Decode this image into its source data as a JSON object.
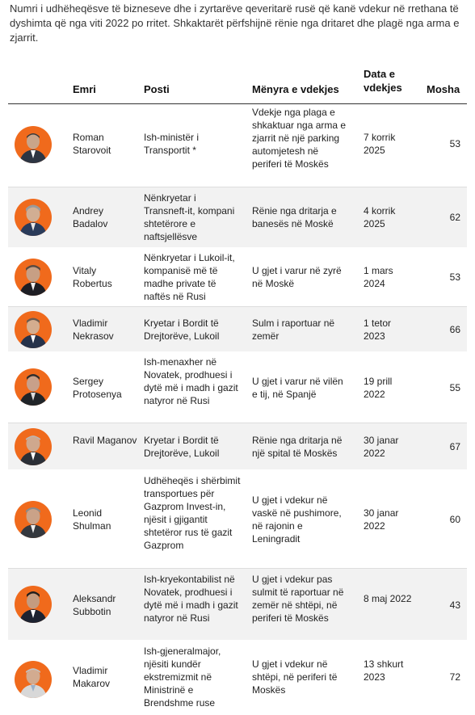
{
  "intro": "Numri i udhëheqësve të bizneseve dhe i zyrtarëve qeveritarë rusë që kanë vdekur në rrethana të dyshimta që nga viti 2022 po rritet. Shkaktarët përfshijnë rënie nga dritaret dhe plagë nga arma e zjarrit.",
  "columns": {
    "name": "Emri",
    "post": "Posti",
    "method": "Mënyra e vdekjes",
    "date": "Data e vdekjes",
    "age": "Mosha"
  },
  "colors": {
    "avatar_bg": "#f06a1c",
    "row_shade": "#f2f2f2",
    "divider": "#dddddd"
  },
  "rows": [
    {
      "name": "Roman Starovoit",
      "post": "Ish-ministër i Transportit *",
      "method": "Vdekje nga plaga e shkaktuar nga arma e zjarrit në një parking automjetesh në periferi të Moskës",
      "date": "7 korrik 2025",
      "age": "53"
    },
    {
      "name": "Andrey Badalov",
      "post": "Nënkryetar i Transneft-it, kompani shtetërore e naftsjellësve",
      "method": "Rënie nga dritarja e banesës në Moskë",
      "date": "4 korrik 2025",
      "age": "62"
    },
    {
      "name": "Vitaly Robertus",
      "post": "Nënkryetar i Lukoil-it, kompanisë më të madhe private të naftës në Rusi",
      "method": "U gjet i varur në zyrë në Moskë",
      "date": "1 mars 2024",
      "age": "53"
    },
    {
      "name": "Vladimir Nekrasov",
      "post": "Kryetar i Bordit të Drejtorëve, Lukoil",
      "method": "Sulm i raportuar në zemër",
      "date": "1 tetor 2023",
      "age": "66"
    },
    {
      "name": "Sergey Protosenya",
      "post": "Ish-menaxher në Novatek, prodhuesi i dytë më i madh i gazit natyror në Rusi",
      "method": "U gjet i varur në vilën e tij, në Spanjë",
      "date": "19 prill 2022",
      "age": "55"
    },
    {
      "name": "Ravil Maganov",
      "post": "Kryetar i Bordit të Drejtorëve, Lukoil",
      "method": "Rënie nga dritarja në një spital të Moskës",
      "date": "30 janar 2022",
      "age": "67"
    },
    {
      "name": "Leonid Shulman",
      "post": "Udhëheqës i shërbimit transportues për Gazprom Invest-in, njësit i gjigantit shtetëror rus të gazit Gazprom",
      "method": "U gjet i vdekur në vaskë në pushimore, në rajonin e Leningradit",
      "date": "30 janar 2022",
      "age": "60"
    },
    {
      "name": "Aleksandr Subbotin",
      "post": "Ish-kryekontabilist në Novatek, prodhuesi i dytë më i madh i gazit natyror në Rusi",
      "method": "U gjet i vdekur pas sulmit të raportuar në zemër në shtëpi, në periferi të Moskës",
      "date": "8 maj 2022",
      "age": "43"
    },
    {
      "name": "Vladimir Makarov",
      "post": "Ish-gjeneralmajor, njësiti kundër ekstremizmit në Ministrinë e Brendshme ruse",
      "method": "U gjet i vdekur në shtëpi, në periferi të Moskës",
      "date": "13 shkurt 2023",
      "age": "72"
    }
  ]
}
